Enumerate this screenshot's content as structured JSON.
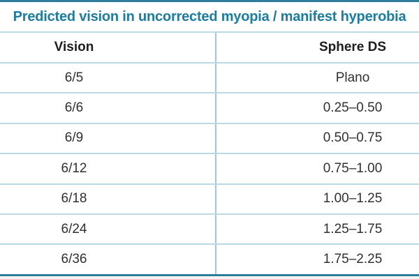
{
  "chart_data": {
    "type": "table",
    "title": "Predicted vision in uncorrected myopia / manifest hyperobia",
    "columns": [
      "Vision",
      "Sphere DS"
    ],
    "rows": [
      [
        "6/5",
        "Plano"
      ],
      [
        "6/6",
        "0.25–0.50"
      ],
      [
        "6/9",
        "0.50–0.75"
      ],
      [
        "6/12",
        "0.75–1.00"
      ],
      [
        "6/18",
        "1.00–1.25"
      ],
      [
        "6/24",
        "1.25–1.75"
      ],
      [
        "6/36",
        "1.75–2.25"
      ]
    ]
  },
  "colors": {
    "accent_teal": "#1A7DA2",
    "strong_border": "#2C7E9A",
    "grid_line": "#BCD9E3",
    "column_divider": "#9BC7D8",
    "header_text": "#1D1D1D",
    "cell_text": "#303030",
    "outer_background": "#F3F3F3"
  }
}
